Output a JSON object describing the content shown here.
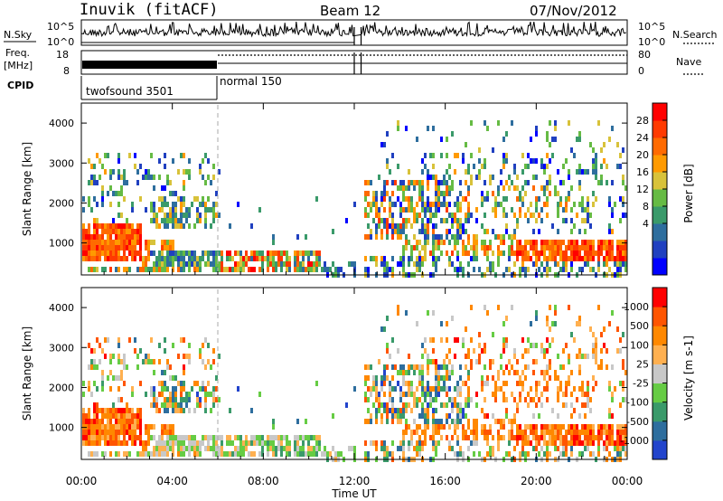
{
  "header": {
    "station": "Inuvik (fitACF)",
    "beam": "Beam 12",
    "date": "07/Nov/2012"
  },
  "status_panels": {
    "nsky_label": "N.Sky",
    "nsky_ticks": [
      "10^5",
      "10^0"
    ],
    "nsearch_label": "N.Search",
    "nsearch_ticks": [
      "10^5",
      "10^0"
    ],
    "freq_label_top": "Freq.",
    "freq_label_bottom": "[MHz]",
    "freq_ticks": [
      "18",
      "8"
    ],
    "nave_label": "Nave",
    "nave_ticks": [
      "80",
      "0"
    ],
    "cpid_label": "CPID",
    "cpid_segments": [
      {
        "name": "twofsound 3501",
        "start_hour": 0,
        "end_hour": 6
      },
      {
        "name": "normal 150",
        "start_hour": 6,
        "end_hour": 24
      }
    ]
  },
  "chart_data": [
    {
      "type": "heatmap",
      "name": "power",
      "ylabel": "Slant Range [km]",
      "y_ticks": [
        "1000",
        "2000",
        "3000",
        "4000"
      ],
      "ylim": [
        200,
        4500
      ],
      "xlim": [
        0,
        24
      ],
      "colorbar_label": "Power [dB]",
      "colorbar_ticks": [
        "28",
        "24",
        "20",
        "16",
        "12",
        "8",
        "4"
      ],
      "colorbar_colors": [
        "#0000ff",
        "#2040c0",
        "#2e6e9e",
        "#3a9a6a",
        "#66bb44",
        "#d8c23a",
        "#ff9a00",
        "#ff6a00",
        "#ff3a00",
        "#ff0000"
      ],
      "data_gap_hours": [
        12.0,
        12.3
      ],
      "mode_change_hour": 6
    },
    {
      "type": "heatmap",
      "name": "velocity",
      "ylabel": "Slant Range [km]",
      "y_ticks": [
        "1000",
        "2000",
        "3000",
        "4000"
      ],
      "ylim": [
        200,
        4500
      ],
      "xlim": [
        0,
        24
      ],
      "colorbar_label": "Velocity [m s-1]",
      "colorbar_ticks": [
        "1000",
        "500",
        "100",
        "25",
        "-25",
        "-100",
        "-500",
        "-1000"
      ],
      "colorbar_colors": [
        "#2244cc",
        "#2e6e9e",
        "#3a9a6a",
        "#66cc44",
        "#c8c8c8",
        "#ffb050",
        "#ff8800",
        "#ff5500",
        "#ff0000"
      ],
      "xlabel": "Time UT",
      "x_ticks": [
        "00:00",
        "04:00",
        "08:00",
        "12:00",
        "16:00",
        "20:00",
        "00:00"
      ]
    }
  ]
}
